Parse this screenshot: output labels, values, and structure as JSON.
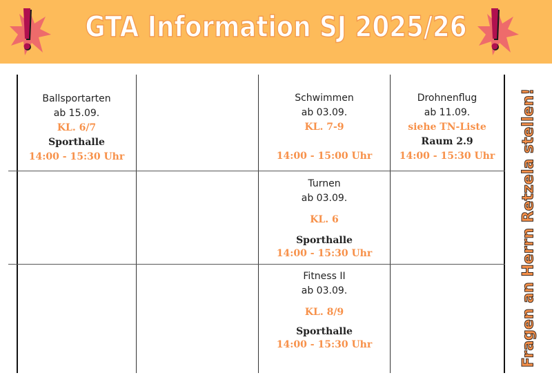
{
  "header": {
    "title": "GTA Information SJ 2025/26",
    "icon": "exclamation-burst-icon",
    "bg_color": "#FDBB5A",
    "accent_color": "#F7914A"
  },
  "cells": {
    "ballsport": {
      "name": "Ballsportarten",
      "start": "ab 15.09.",
      "grade": "KL. 6/7",
      "place": "Sporthalle",
      "time": "14:00 - 15:30 Uhr"
    },
    "schwimmen": {
      "name": "Schwimmen",
      "start": "ab 03.09.",
      "grade": "KL. 7-9",
      "time": "14:00 - 15:00 Uhr"
    },
    "drohnen": {
      "name": "Drohnenflug",
      "start": "ab 11.09.",
      "grade": "siehe TN-Liste",
      "place": "Raum 2.9",
      "time": "14:00 - 15:30 Uhr"
    },
    "turnen": {
      "name": "Turnen",
      "start": "ab 03.09.",
      "grade": "KL. 6",
      "place": "Sporthalle",
      "time": "14:00 - 15:30 Uhr"
    },
    "fitness": {
      "name": "Fitness II",
      "start": "ab 03.09.",
      "grade": "KL. 8/9",
      "place": "Sporthalle",
      "time": "14:00 - 15:30 Uhr"
    }
  },
  "side_note": "Fragen an Herrn Retzela stellen!"
}
